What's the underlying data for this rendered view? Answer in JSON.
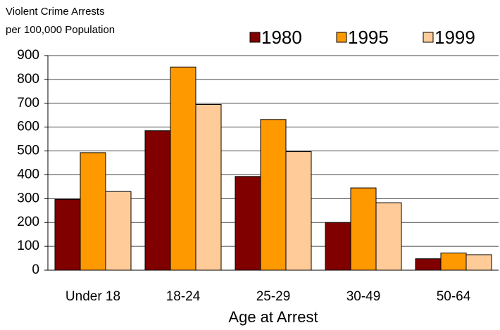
{
  "chart_data": {
    "type": "bar",
    "ylabel": [
      "Violent Crime Arrests",
      "per 100,000 Population"
    ],
    "xlabel": "Age at Arrest",
    "categories": [
      "Under 18",
      "18-24",
      "25-29",
      "30-49",
      "50-64"
    ],
    "series": [
      {
        "name": "1980",
        "color": "#800000",
        "values": [
          297,
          585,
          393,
          200,
          48
        ]
      },
      {
        "name": "1995",
        "color": "#ff9900",
        "values": [
          493,
          852,
          632,
          345,
          72
        ]
      },
      {
        "name": "1999",
        "color": "#ffcc99",
        "values": [
          330,
          695,
          497,
          283,
          65
        ]
      }
    ],
    "ylim": [
      0,
      900
    ],
    "yticks": [
      0,
      100,
      200,
      300,
      400,
      500,
      600,
      700,
      800,
      900
    ],
    "grid": true,
    "legend": "top"
  }
}
